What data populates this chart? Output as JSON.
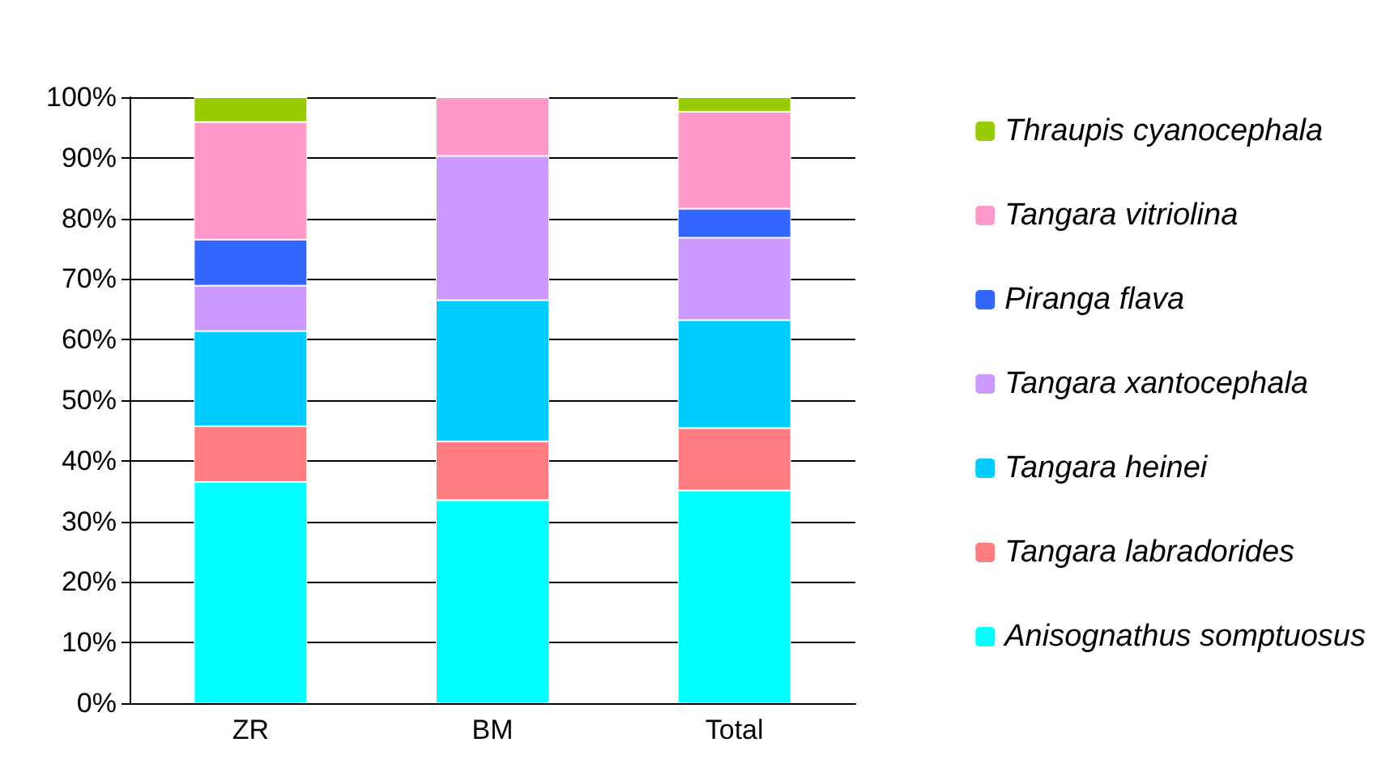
{
  "chart_data": {
    "type": "bar",
    "stacked": true,
    "categories": [
      "ZR",
      "BM",
      "Total"
    ],
    "series": [
      {
        "name": "Anisognathus somptuosus",
        "color": "#00ffff",
        "values": [
          36.5,
          33.5,
          35.1
        ]
      },
      {
        "name": "Tangara labradorides",
        "color": "#ff7c80",
        "values": [
          9.2,
          9.7,
          10.3
        ]
      },
      {
        "name": "Tangara heinei",
        "color": "#00ccff",
        "values": [
          15.7,
          23.3,
          17.8
        ]
      },
      {
        "name": "Tangara xantocephala",
        "color": "#cc99ff",
        "values": [
          7.5,
          23.8,
          13.6
        ]
      },
      {
        "name": "Piranga flava",
        "color": "#3366ff",
        "values": [
          7.6,
          null,
          4.8
        ]
      },
      {
        "name": "Tangara vitriolina",
        "color": "#ff99cc",
        "values": [
          19.4,
          9.7,
          16
        ]
      },
      {
        "name": "Thraupis cyanocephala",
        "color": "#99cc00",
        "values": [
          4.1,
          null,
          2.4
        ]
      }
    ],
    "ylim": [
      0,
      100
    ],
    "yticks": [
      {
        "value": 0,
        "label": "0%"
      },
      {
        "value": 10,
        "label": "10%"
      },
      {
        "value": 20,
        "label": "20%"
      },
      {
        "value": 30,
        "label": "30%"
      },
      {
        "value": 40,
        "label": "40%"
      },
      {
        "value": 50,
        "label": "50%"
      },
      {
        "value": 60,
        "label": "60%"
      },
      {
        "value": 70,
        "label": "70%"
      },
      {
        "value": 80,
        "label": "80%"
      },
      {
        "value": 90,
        "label": "90%"
      },
      {
        "value": 100,
        "label": "100%"
      }
    ],
    "grid": "y",
    "legend": "right"
  }
}
